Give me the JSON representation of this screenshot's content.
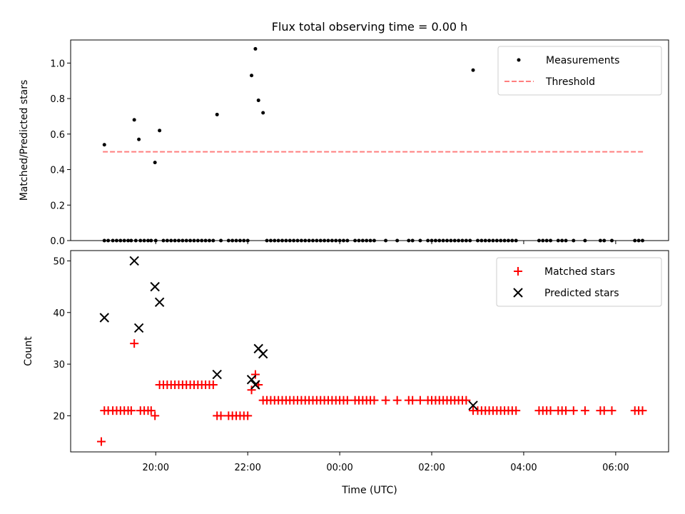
{
  "chart_data": [
    {
      "type": "scatter",
      "title": "Flux total observing time = 0.00 h",
      "xlabel": "",
      "ylabel": "Matched/Predicted stars",
      "ylim": [
        0,
        1.13
      ],
      "xlim": [
        "18:09",
        "07:09"
      ],
      "yticks": [
        0.0,
        0.2,
        0.4,
        0.6,
        0.8,
        1.0
      ],
      "ytick_labels": [
        "0.0",
        "0.2",
        "0.4",
        "0.6",
        "0.8",
        "1.0"
      ],
      "legend": {
        "position": "top-right",
        "entries": [
          "Measurements",
          "Threshold"
        ]
      },
      "threshold": {
        "name": "Threshold",
        "value": 0.5,
        "x_range": [
          "18:51",
          "06:38"
        ],
        "color": "#ff7f7f"
      },
      "series": [
        {
          "name": "Measurements",
          "marker": "dot",
          "color": "#000000",
          "points": [
            [
              "18:53",
              0.54
            ],
            [
              "19:32",
              0.68
            ],
            [
              "19:38",
              0.57
            ],
            [
              "19:59",
              0.44
            ],
            [
              "20:05",
              0.62
            ],
            [
              "21:20",
              0.71
            ],
            [
              "22:05",
              0.93
            ],
            [
              "22:10",
              1.08
            ],
            [
              "22:14",
              0.79
            ],
            [
              "22:20",
              0.72
            ],
            [
              "02:54",
              0.96
            ],
            [
              "18:53",
              0
            ],
            [
              "18:58",
              0
            ],
            [
              "19:04",
              0
            ],
            [
              "19:09",
              0
            ],
            [
              "19:14",
              0
            ],
            [
              "19:19",
              0
            ],
            [
              "19:24",
              0
            ],
            [
              "19:28",
              0
            ],
            [
              "19:34",
              0
            ],
            [
              "19:40",
              0
            ],
            [
              "19:45",
              0
            ],
            [
              "19:50",
              0
            ],
            [
              "19:54",
              0
            ],
            [
              "20:00",
              0
            ],
            [
              "20:10",
              0
            ],
            [
              "20:15",
              0
            ],
            [
              "20:20",
              0
            ],
            [
              "20:25",
              0
            ],
            [
              "20:30",
              0
            ],
            [
              "20:35",
              0
            ],
            [
              "20:40",
              0
            ],
            [
              "20:45",
              0
            ],
            [
              "20:50",
              0
            ],
            [
              "20:55",
              0
            ],
            [
              "21:00",
              0
            ],
            [
              "21:05",
              0
            ],
            [
              "21:10",
              0
            ],
            [
              "21:15",
              0
            ],
            [
              "21:25",
              0
            ],
            [
              "21:35",
              0
            ],
            [
              "21:40",
              0
            ],
            [
              "21:45",
              0
            ],
            [
              "21:50",
              0
            ],
            [
              "21:55",
              0
            ],
            [
              "22:00",
              0
            ],
            [
              "22:25",
              0
            ],
            [
              "22:30",
              0
            ],
            [
              "22:35",
              0
            ],
            [
              "22:40",
              0
            ],
            [
              "22:45",
              0
            ],
            [
              "22:50",
              0
            ],
            [
              "22:55",
              0
            ],
            [
              "23:00",
              0
            ],
            [
              "23:05",
              0
            ],
            [
              "23:10",
              0
            ],
            [
              "23:15",
              0
            ],
            [
              "23:20",
              0
            ],
            [
              "23:25",
              0
            ],
            [
              "23:30",
              0
            ],
            [
              "23:35",
              0
            ],
            [
              "23:40",
              0
            ],
            [
              "23:45",
              0
            ],
            [
              "23:50",
              0
            ],
            [
              "23:55",
              0
            ],
            [
              "00:00",
              0
            ],
            [
              "00:05",
              0
            ],
            [
              "00:10",
              0
            ],
            [
              "00:20",
              0
            ],
            [
              "00:25",
              0
            ],
            [
              "00:30",
              0
            ],
            [
              "00:35",
              0
            ],
            [
              "00:40",
              0
            ],
            [
              "00:45",
              0
            ],
            [
              "01:00",
              0
            ],
            [
              "01:15",
              0
            ],
            [
              "01:30",
              0
            ],
            [
              "01:35",
              0
            ],
            [
              "01:45",
              0
            ],
            [
              "01:55",
              0
            ],
            [
              "02:00",
              0
            ],
            [
              "02:05",
              0
            ],
            [
              "02:10",
              0
            ],
            [
              "02:15",
              0
            ],
            [
              "02:20",
              0
            ],
            [
              "02:25",
              0
            ],
            [
              "02:30",
              0
            ],
            [
              "02:35",
              0
            ],
            [
              "02:40",
              0
            ],
            [
              "02:45",
              0
            ],
            [
              "02:50",
              0
            ],
            [
              "03:00",
              0
            ],
            [
              "03:05",
              0
            ],
            [
              "03:10",
              0
            ],
            [
              "03:15",
              0
            ],
            [
              "03:20",
              0
            ],
            [
              "03:25",
              0
            ],
            [
              "03:30",
              0
            ],
            [
              "03:35",
              0
            ],
            [
              "03:40",
              0
            ],
            [
              "03:45",
              0
            ],
            [
              "03:50",
              0
            ],
            [
              "04:20",
              0
            ],
            [
              "04:25",
              0
            ],
            [
              "04:30",
              0
            ],
            [
              "04:35",
              0
            ],
            [
              "04:45",
              0
            ],
            [
              "04:50",
              0
            ],
            [
              "04:55",
              0
            ],
            [
              "05:05",
              0
            ],
            [
              "05:20",
              0
            ],
            [
              "05:40",
              0
            ],
            [
              "05:45",
              0
            ],
            [
              "05:55",
              0
            ],
            [
              "06:25",
              0
            ],
            [
              "06:30",
              0
            ],
            [
              "06:35",
              0
            ]
          ]
        }
      ]
    },
    {
      "type": "scatter",
      "title": "",
      "xlabel": "Time (UTC)",
      "ylabel": "Count",
      "ylim": [
        13,
        52
      ],
      "xlim": [
        "18:09",
        "07:09"
      ],
      "yticks": [
        20,
        30,
        40,
        50
      ],
      "ytick_labels": [
        "20",
        "30",
        "40",
        "50"
      ],
      "xticks": [
        "20:00",
        "22:00",
        "00:00",
        "02:00",
        "04:00",
        "06:00"
      ],
      "legend": {
        "position": "top-right",
        "entries": [
          "Matched stars",
          "Predicted stars"
        ]
      },
      "series": [
        {
          "name": "Matched stars",
          "marker": "plus",
          "color": "#ff0000",
          "points": [
            [
              "18:49",
              15
            ],
            [
              "19:32",
              34
            ],
            [
              "19:59",
              20
            ],
            [
              "22:05",
              25
            ],
            [
              "22:10",
              28
            ],
            [
              "22:14",
              26
            ],
            [
              "18:53",
              21
            ],
            [
              "18:58",
              21
            ],
            [
              "19:04",
              21
            ],
            [
              "19:09",
              21
            ],
            [
              "19:14",
              21
            ],
            [
              "19:19",
              21
            ],
            [
              "19:24",
              21
            ],
            [
              "19:28",
              21
            ],
            [
              "19:40",
              21
            ],
            [
              "19:45",
              21
            ],
            [
              "19:50",
              21
            ],
            [
              "19:54",
              21
            ],
            [
              "20:05",
              26
            ],
            [
              "20:10",
              26
            ],
            [
              "20:15",
              26
            ],
            [
              "20:20",
              26
            ],
            [
              "20:25",
              26
            ],
            [
              "20:30",
              26
            ],
            [
              "20:35",
              26
            ],
            [
              "20:40",
              26
            ],
            [
              "20:45",
              26
            ],
            [
              "20:50",
              26
            ],
            [
              "20:55",
              26
            ],
            [
              "21:00",
              26
            ],
            [
              "21:05",
              26
            ],
            [
              "21:10",
              26
            ],
            [
              "21:15",
              26
            ],
            [
              "21:20",
              20
            ],
            [
              "21:25",
              20
            ],
            [
              "21:35",
              20
            ],
            [
              "21:40",
              20
            ],
            [
              "21:45",
              20
            ],
            [
              "21:50",
              20
            ],
            [
              "21:55",
              20
            ],
            [
              "22:00",
              20
            ],
            [
              "22:20",
              23
            ],
            [
              "22:25",
              23
            ],
            [
              "22:30",
              23
            ],
            [
              "22:35",
              23
            ],
            [
              "22:40",
              23
            ],
            [
              "22:45",
              23
            ],
            [
              "22:50",
              23
            ],
            [
              "22:55",
              23
            ],
            [
              "23:00",
              23
            ],
            [
              "23:05",
              23
            ],
            [
              "23:10",
              23
            ],
            [
              "23:15",
              23
            ],
            [
              "23:20",
              23
            ],
            [
              "23:25",
              23
            ],
            [
              "23:30",
              23
            ],
            [
              "23:35",
              23
            ],
            [
              "23:40",
              23
            ],
            [
              "23:45",
              23
            ],
            [
              "23:50",
              23
            ],
            [
              "23:55",
              23
            ],
            [
              "00:00",
              23
            ],
            [
              "00:05",
              23
            ],
            [
              "00:10",
              23
            ],
            [
              "00:20",
              23
            ],
            [
              "00:25",
              23
            ],
            [
              "00:30",
              23
            ],
            [
              "00:35",
              23
            ],
            [
              "00:40",
              23
            ],
            [
              "00:45",
              23
            ],
            [
              "01:00",
              23
            ],
            [
              "01:15",
              23
            ],
            [
              "01:30",
              23
            ],
            [
              "01:35",
              23
            ],
            [
              "01:45",
              23
            ],
            [
              "01:55",
              23
            ],
            [
              "02:00",
              23
            ],
            [
              "02:05",
              23
            ],
            [
              "02:10",
              23
            ],
            [
              "02:15",
              23
            ],
            [
              "02:20",
              23
            ],
            [
              "02:25",
              23
            ],
            [
              "02:30",
              23
            ],
            [
              "02:35",
              23
            ],
            [
              "02:40",
              23
            ],
            [
              "02:45",
              23
            ],
            [
              "02:54",
              21
            ],
            [
              "03:00",
              21
            ],
            [
              "03:05",
              21
            ],
            [
              "03:10",
              21
            ],
            [
              "03:15",
              21
            ],
            [
              "03:20",
              21
            ],
            [
              "03:25",
              21
            ],
            [
              "03:30",
              21
            ],
            [
              "03:35",
              21
            ],
            [
              "03:40",
              21
            ],
            [
              "03:45",
              21
            ],
            [
              "03:50",
              21
            ],
            [
              "04:20",
              21
            ],
            [
              "04:25",
              21
            ],
            [
              "04:30",
              21
            ],
            [
              "04:35",
              21
            ],
            [
              "04:45",
              21
            ],
            [
              "04:50",
              21
            ],
            [
              "04:55",
              21
            ],
            [
              "05:05",
              21
            ],
            [
              "05:20",
              21
            ],
            [
              "05:40",
              21
            ],
            [
              "05:45",
              21
            ],
            [
              "05:55",
              21
            ],
            [
              "06:25",
              21
            ],
            [
              "06:30",
              21
            ],
            [
              "06:35",
              21
            ]
          ]
        },
        {
          "name": "Predicted stars",
          "marker": "x",
          "color": "#000000",
          "points": [
            [
              "18:53",
              39
            ],
            [
              "19:32",
              50
            ],
            [
              "19:38",
              37
            ],
            [
              "19:59",
              45
            ],
            [
              "20:05",
              42
            ],
            [
              "21:20",
              28
            ],
            [
              "22:05",
              27
            ],
            [
              "22:10",
              26
            ],
            [
              "22:14",
              33
            ],
            [
              "22:20",
              32
            ],
            [
              "02:54",
              22
            ]
          ]
        }
      ]
    }
  ]
}
